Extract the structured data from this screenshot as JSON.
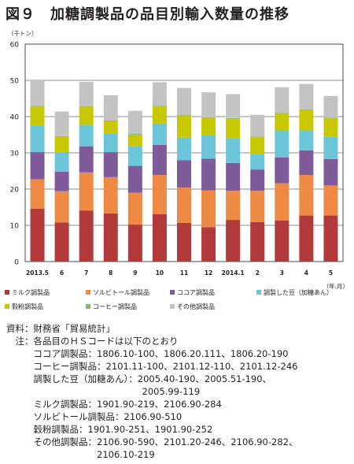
{
  "title": "図９　加糖調製品の品目別輸入数量の推移",
  "chart_data": {
    "type": "bar",
    "stacked": true,
    "y_unit": "（千トン）",
    "x_unit": "（年.月）",
    "ylim": [
      0,
      60
    ],
    "yticks": [
      0,
      10,
      20,
      30,
      40,
      50,
      60
    ],
    "categories": [
      "2013.5",
      "6",
      "7",
      "8",
      "9",
      "10",
      "11",
      "12",
      "2014.1",
      "2",
      "3",
      "4",
      "5"
    ],
    "series": [
      {
        "name": "ミルク調製品",
        "color": "#b33a3a",
        "values": [
          14.6,
          10.8,
          14.1,
          13.3,
          10.2,
          13.1,
          10.7,
          9.5,
          11.5,
          10.9,
          11.3,
          12.7,
          12.7
        ]
      },
      {
        "name": "ソルビトール調製品",
        "color": "#ee8a44",
        "values": [
          8.1,
          8.6,
          10.5,
          10.0,
          8.8,
          10.8,
          9.7,
          10.1,
          8.0,
          8.6,
          10.3,
          11.2,
          8.3
        ]
      },
      {
        "name": "ココア調製品",
        "color": "#7f5c99",
        "values": [
          7.5,
          5.4,
          7.2,
          6.9,
          7.4,
          8.3,
          7.6,
          8.8,
          7.7,
          5.9,
          7.1,
          6.8,
          7.3
        ]
      },
      {
        "name": "調製した豆（加糖あん）",
        "color": "#6cc6da",
        "values": [
          7.2,
          5.3,
          5.9,
          5.2,
          5.5,
          5.9,
          6.2,
          6.5,
          6.7,
          4.3,
          7.5,
          5.5,
          6.2
        ]
      },
      {
        "name": "穀粉調製品",
        "color": "#c8c800",
        "values": [
          5.4,
          4.3,
          4.9,
          3.3,
          3.1,
          4.7,
          6.1,
          4.7,
          5.5,
          4.6,
          4.6,
          5.6,
          5.0
        ]
      },
      {
        "name": "コーヒー調製品",
        "color": "#8ab86a",
        "values": [
          0.2,
          0.2,
          0.2,
          0.2,
          0.2,
          0.2,
          0.2,
          0.2,
          0.2,
          0.2,
          0.2,
          0.2,
          0.2
        ]
      },
      {
        "name": "その他調製品",
        "color": "#c3c3c3",
        "values": [
          7.2,
          6.8,
          6.8,
          7.0,
          6.4,
          6.5,
          7.4,
          6.9,
          6.6,
          6.0,
          7.1,
          7.0,
          6.0
        ]
      }
    ]
  },
  "notes": [
    "資料：財務省「貿易統計」",
    "　注：各品目のＨＳコードは以下のとおり",
    "　　　ココア調製品：1806.10-100、1806.20.111、1806.20-190",
    "　　　コーヒー調製品：2101.11-100、2101.12-110、2101.12-246",
    "　　　調製した豆（加糖あん）：2005.40-190、2005.51-190、",
    "　　　　　　　　　　　　　　　2005.99-119",
    "　　　ミルク調製品：1901.90-219、2106.90-284",
    "　　　ソルビトール調製品：2106.90-510",
    "　　　穀粉調製品：1901.90-251、1901.90-252",
    "　　　その他調製品：2106.90-590、2101.20-246、2106.90-282、",
    "　　　　　　　　　　2106.10-219"
  ]
}
